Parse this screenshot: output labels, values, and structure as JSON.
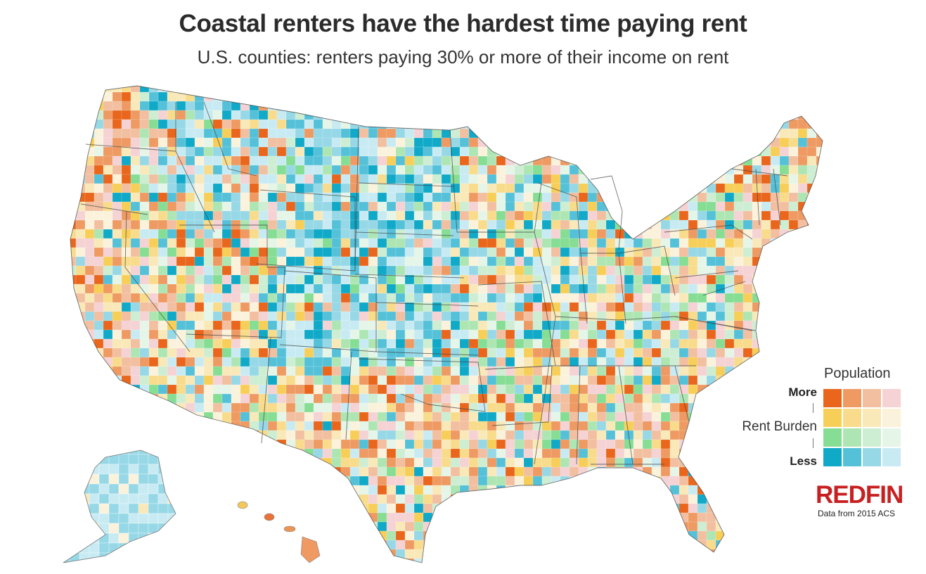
{
  "title": "Coastal renters have the hardest time paying rent",
  "subtitle": "U.S. counties: renters paying 30% or more of their income on rent",
  "legend": {
    "title": "Population",
    "more_label": "More",
    "less_label": "Less",
    "axis_label": "Rent Burden",
    "palette": [
      [
        "#e9661c",
        "#ee9a62",
        "#f2bfa0",
        "#f5d2d4"
      ],
      [
        "#f7ce57",
        "#f8dc8c",
        "#f9e8b8",
        "#fbf2dc"
      ],
      [
        "#86dd94",
        "#aee6b3",
        "#cdeed2",
        "#e5f5e8"
      ],
      [
        "#10a9c8",
        "#54c1d9",
        "#97d8e7",
        "#c8ebf3"
      ]
    ]
  },
  "brand": "REDFIN",
  "source": "Data from 2015 ACS",
  "colors": {
    "title_text": "#2b2b2b",
    "border_lines": "#444444",
    "brand": "#c82021"
  }
}
